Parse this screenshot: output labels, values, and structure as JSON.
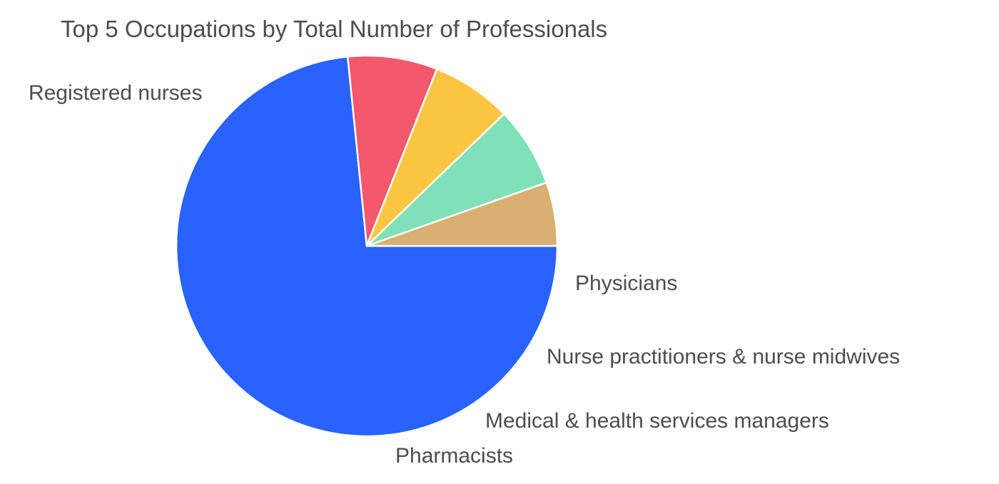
{
  "chart_data": {
    "type": "pie",
    "title": "Top 5 Occupations by Total Number of Professionals",
    "start_direction": "east",
    "direction": "clockwise",
    "slices": [
      {
        "label": "Registered nurses",
        "value": 73.4,
        "color": "#2962ff"
      },
      {
        "label": "Pharmacists",
        "value": 7.6,
        "color": "#f5576c"
      },
      {
        "label": "Medical & health services managers",
        "value": 6.8,
        "color": "#fdc642"
      },
      {
        "label": "Nurse practitioners & nurse midwives",
        "value": 6.8,
        "color": "#80e0b8"
      },
      {
        "label": "Physicians",
        "value": 5.4,
        "color": "#d9af72"
      }
    ],
    "legend": "none"
  },
  "colors": {
    "label_text": "#4d4d4d",
    "slice_border": "#ffffff"
  }
}
